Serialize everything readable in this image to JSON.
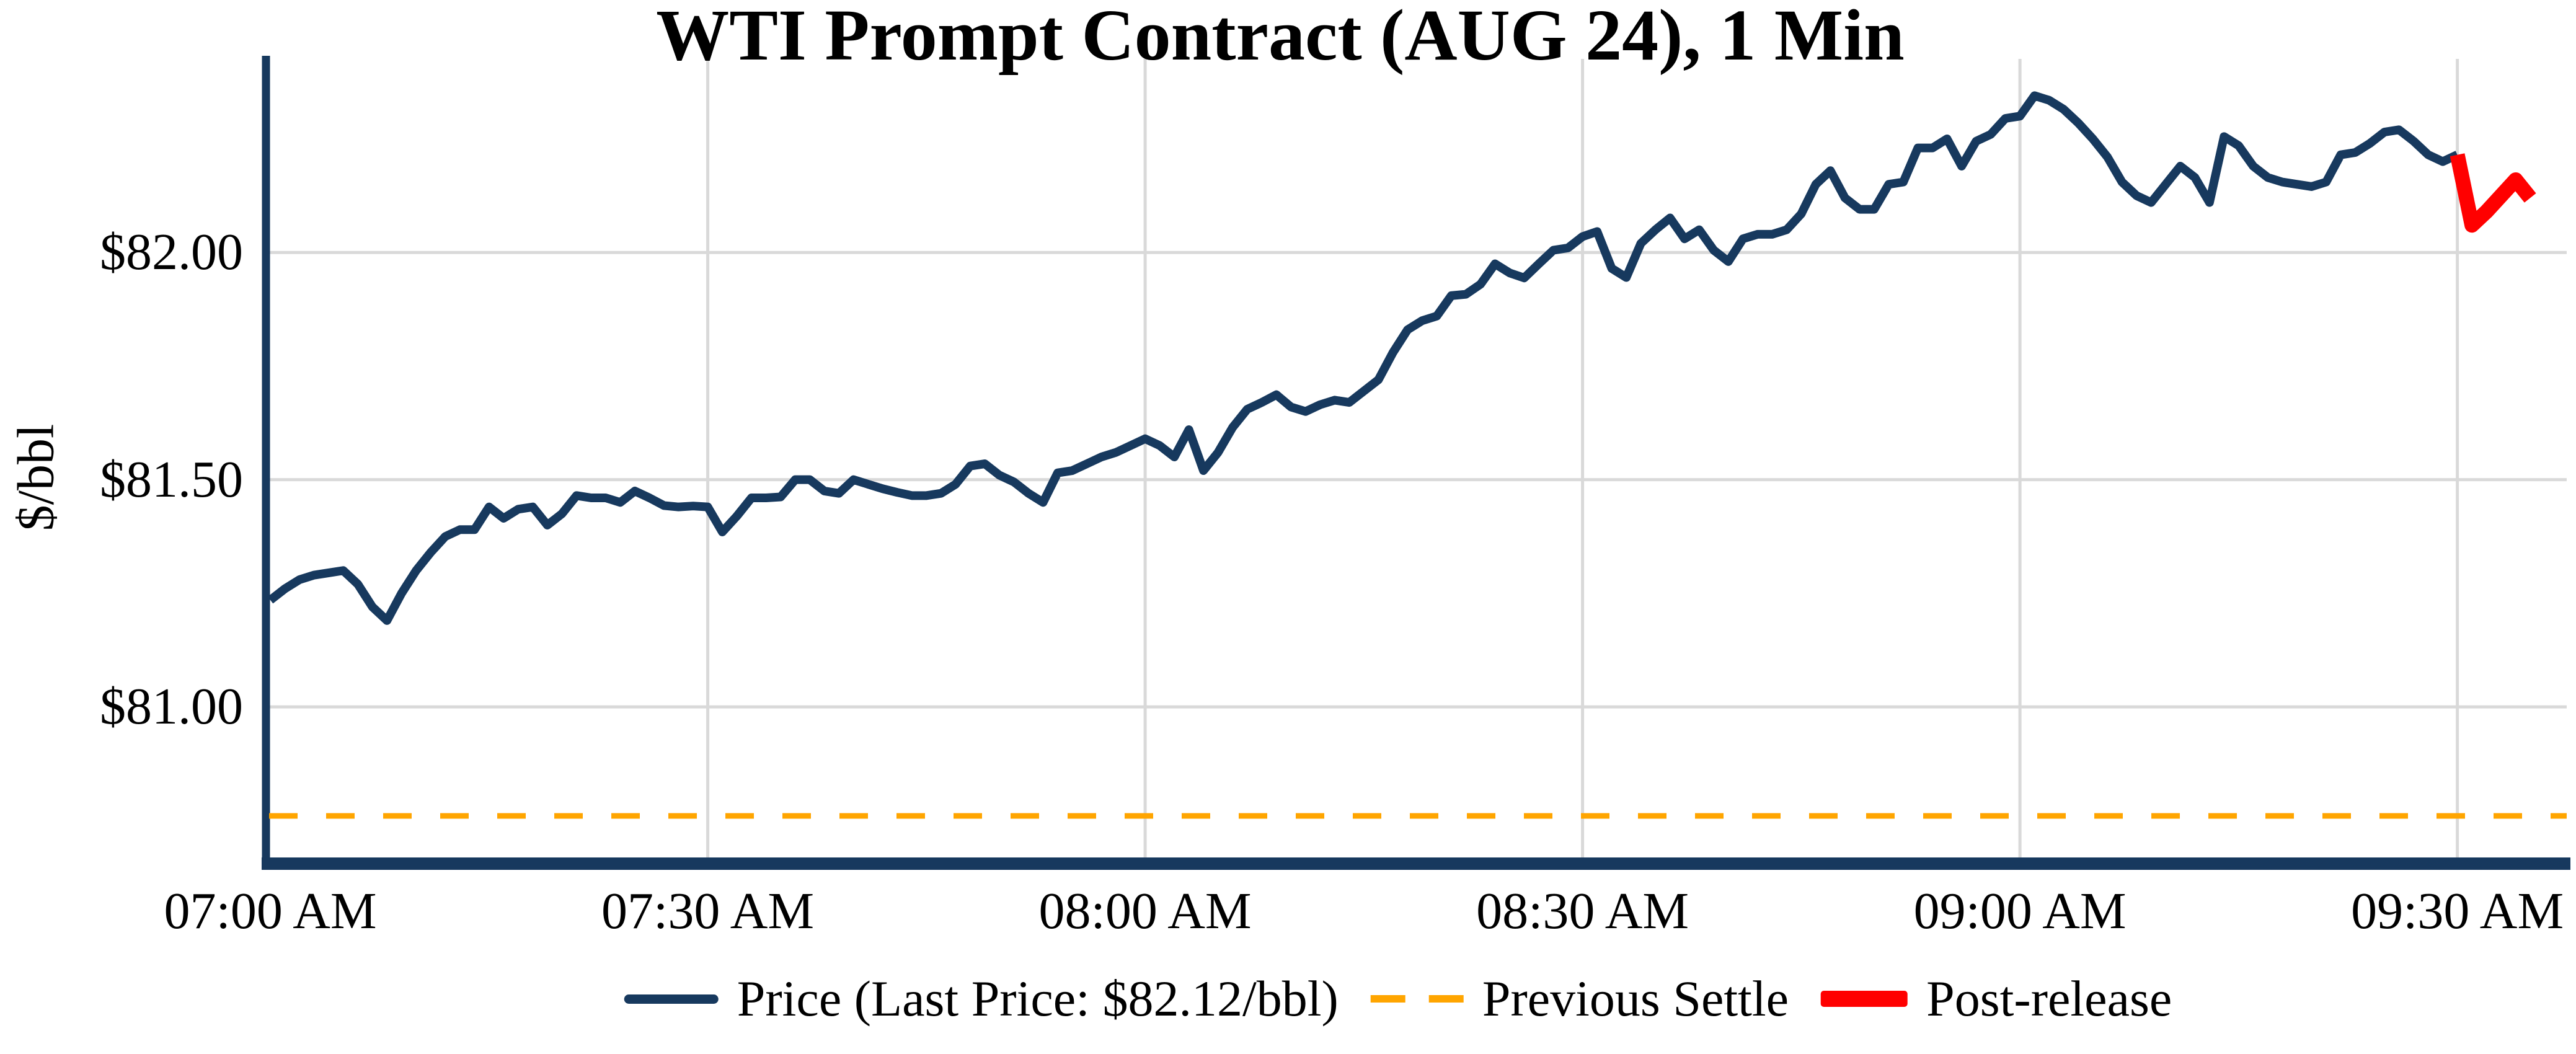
{
  "chart_data": {
    "type": "line",
    "title": "WTI Prompt Contract (AUG 24), 1 Min",
    "ylabel": "$/bbl",
    "last_price_text": "$82.12/bbl",
    "last_price": 82.12,
    "previous_settle": 80.76,
    "grid": true,
    "grid_color": "#D9D9D9",
    "axis_color": "#17395E",
    "x_axis": {
      "tick_minutes": [
        0,
        30,
        60,
        90,
        120,
        150
      ],
      "tick_labels": [
        "07:00 AM",
        "07:30 AM",
        "08:00 AM",
        "08:30 AM",
        "09:00 AM",
        "09:30 AM"
      ],
      "gridline_minutes": [
        30,
        60,
        90,
        120,
        150
      ],
      "range_minutes": [
        -0.3,
        157.5
      ]
    },
    "y_axis": {
      "tick_values": [
        82.0,
        81.5,
        81.0
      ],
      "tick_labels": [
        "$82.00",
        "$81.50",
        "$81.00"
      ],
      "range": [
        80.655,
        82.426
      ]
    },
    "series": [
      {
        "name": "Price (Last Price: $82.12/bbl)",
        "color": "#17395E",
        "line_width": 14,
        "start_minute": 0,
        "step_minutes": 1,
        "values": [
          81.235,
          81.26,
          81.28,
          81.29,
          81.295,
          81.3,
          81.27,
          81.22,
          81.19,
          81.25,
          81.3,
          81.34,
          81.375,
          81.39,
          81.39,
          81.44,
          81.415,
          81.435,
          81.44,
          81.4,
          81.425,
          81.465,
          81.46,
          81.46,
          81.45,
          81.475,
          81.46,
          81.443,
          81.44,
          81.442,
          81.44,
          81.385,
          81.42,
          81.46,
          81.46,
          81.462,
          81.5,
          81.5,
          81.475,
          81.47,
          81.5,
          81.49,
          81.48,
          81.472,
          81.465,
          81.465,
          81.47,
          81.49,
          81.53,
          81.535,
          81.51,
          81.495,
          81.47,
          81.45,
          81.515,
          81.52,
          81.535,
          81.55,
          81.56,
          81.575,
          81.59,
          81.575,
          81.55,
          81.61,
          81.52,
          81.56,
          81.615,
          81.655,
          81.67,
          81.687,
          81.66,
          81.65,
          81.665,
          81.675,
          81.67,
          81.695,
          81.72,
          81.78,
          81.83,
          81.85,
          81.86,
          81.905,
          81.908,
          81.93,
          81.975,
          81.955,
          81.944,
          81.975,
          82.005,
          82.01,
          82.035,
          82.046,
          81.965,
          81.945,
          82.02,
          82.05,
          82.076,
          82.03,
          82.05,
          82.005,
          81.98,
          82.03,
          82.04,
          82.04,
          82.05,
          82.085,
          82.15,
          82.18,
          82.12,
          82.095,
          82.095,
          82.15,
          82.155,
          82.23,
          82.23,
          82.25,
          82.19,
          82.245,
          82.26,
          82.295,
          82.3,
          82.345,
          82.335,
          82.315,
          82.285,
          82.25,
          82.21,
          82.155,
          82.125,
          82.11,
          82.15,
          82.19,
          82.165,
          82.11,
          82.255,
          82.235,
          82.19,
          82.165,
          82.155,
          82.15,
          82.145,
          82.155,
          82.215,
          82.22,
          82.24,
          82.265,
          82.27,
          82.245,
          82.215,
          82.2,
          82.215
        ]
      },
      {
        "name": "Post-release",
        "color": "#FF0000",
        "line_width": 24,
        "start_minute": 150,
        "step_minutes": 1,
        "values": [
          82.215,
          82.06,
          82.09,
          82.125,
          82.16,
          82.12
        ]
      },
      {
        "name": "Previous Settle",
        "color": "#FFA500",
        "style": "dashed",
        "line_width": 9,
        "value": 80.76
      }
    ],
    "legend": [
      {
        "label": "Price (Last Price: $82.12/bbl)",
        "color": "#17395E",
        "style": "solid-line"
      },
      {
        "label": "Previous Settle",
        "color": "#FFA500",
        "style": "dashed-line"
      },
      {
        "label": "Post-release",
        "color": "#FF0000",
        "style": "thick-line"
      }
    ]
  }
}
